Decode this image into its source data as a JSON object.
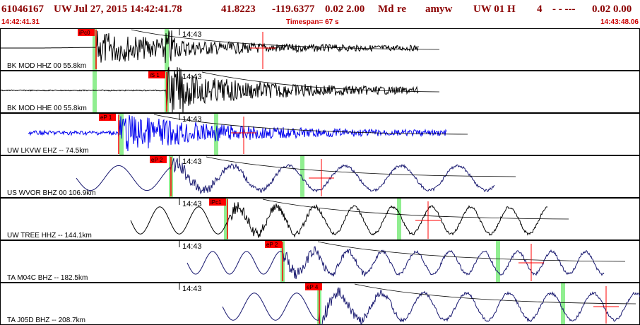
{
  "header": {
    "event_id": "61046167",
    "network": "UW",
    "datetime": "Jul 27, 2015 14:42:41.78",
    "lat": "41.8223",
    "lon": "-119.6377",
    "depth_mag": "0.02 2.00",
    "mag_type": "Md",
    "review": "re",
    "author": "amyw",
    "source": "UW 01 H",
    "count": "4",
    "flags": "- - ---",
    "values": "0.02 0.00"
  },
  "subheader": {
    "start_time": "14:42:41.31",
    "timespan": "Timespan= 67 s",
    "end_time": "14:43:48.06"
  },
  "colors": {
    "header_text": "#8b0000",
    "sub_text": "#cc0000",
    "trace_black": "#000000",
    "trace_blue": "#0000ee",
    "trace_navy": "#191970",
    "pick_red": "#ff0000",
    "pick_green": "#90ee90"
  },
  "time_label": "14:43",
  "traces": [
    {
      "station": "BK MOD HHZ 00 55.8km",
      "pick": "iPc0",
      "color": "trace_black"
    },
    {
      "station": "BK MOD HHE 00 55.8km",
      "pick": "iS 1",
      "color": "trace_black"
    },
    {
      "station": "UW LKVW EHZ -- 74.5km",
      "pick": "eP 1",
      "color": "trace_blue"
    },
    {
      "station": "US WVOR BHZ 00 106.9km",
      "pick": "eP 2",
      "color": "trace_navy"
    },
    {
      "station": "UW TREE HHZ -- 144.1km",
      "pick": "iPc1",
      "color": "trace_black"
    },
    {
      "station": "TA M04C BHZ -- 182.5km",
      "pick": "eP 2",
      "color": "trace_navy"
    },
    {
      "station": "TA J05D BHZ -- 208.7km",
      "pick": "eP 4",
      "color": "trace_navy"
    }
  ]
}
